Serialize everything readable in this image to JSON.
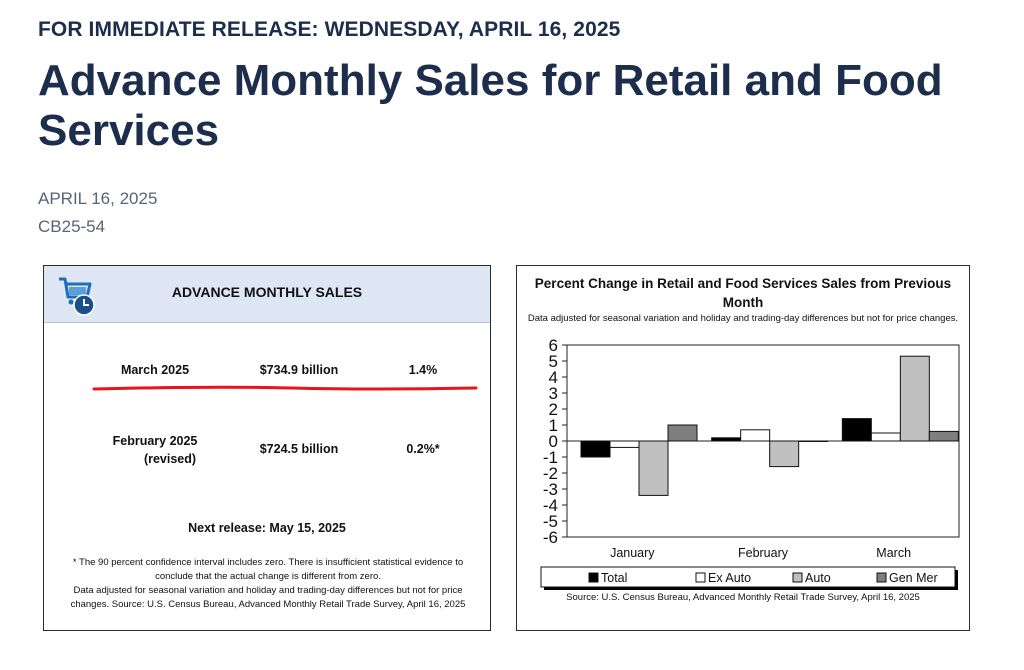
{
  "release_line": "FOR IMMEDIATE RELEASE: WEDNESDAY, APRIL 16, 2025",
  "headline": "Advance Monthly Sales for Retail and Food Services",
  "date": "APRIL 16, 2025",
  "release_id": "CB25-54",
  "summary_box": {
    "title": "ADVANCE MONTHLY SALES",
    "icon": "shopping-cart-clock-icon",
    "rows": [
      {
        "period": "March 2025",
        "sales": "$734.9 billion",
        "change": "1.4%"
      },
      {
        "period": "February 2025",
        "period_note": "(revised)",
        "sales": "$724.5 billion",
        "change": "0.2%*"
      }
    ],
    "next_release": "Next release: May 15, 2025",
    "footnote_1": "* The 90 percent confidence interval includes zero. There is insufficient statistical evidence to conclude that the actual change is different from zero.",
    "footnote_2": "Data adjusted for seasonal variation and holiday and trading-day differences but not for price changes. Source: U.S. Census Bureau, Advanced Monthly Retail Trade Survey, April 16, 2025"
  },
  "colors": {
    "headline": "#1c2e4c",
    "header_band": "#dde6f2",
    "highlight_line": "#e8141b",
    "total": "#000000",
    "ex_auto": "#ffffff",
    "auto": "#c0c0c0",
    "gen_mer": "#7f7f7f"
  },
  "chart_data": {
    "type": "bar",
    "title": "Percent Change in Retail and Food Services Sales from Previous Month",
    "subtitle": "Data adjusted for seasonal variation and holiday and trading-day differences but not for price changes.",
    "source": "Source: U.S. Census Bureau, Advanced Monthly Retail Trade Survey, April 16, 2025",
    "categories": [
      "January",
      "February",
      "March"
    ],
    "series": [
      {
        "name": "Total",
        "values": [
          -1.0,
          0.2,
          1.4
        ]
      },
      {
        "name": "Ex Auto",
        "values": [
          -0.4,
          0.7,
          0.5
        ]
      },
      {
        "name": "Auto",
        "values": [
          -3.4,
          -1.6,
          5.3
        ]
      },
      {
        "name": "Gen Mer",
        "values": [
          1.0,
          0.0,
          0.6
        ]
      }
    ],
    "ylim": [
      -6,
      6
    ],
    "yticks": [
      "6",
      "5",
      "4",
      "3",
      "2",
      "1",
      "0",
      "-1",
      "-2",
      "-3",
      "-4",
      "-5",
      "-6"
    ],
    "legend_position": "bottom"
  }
}
